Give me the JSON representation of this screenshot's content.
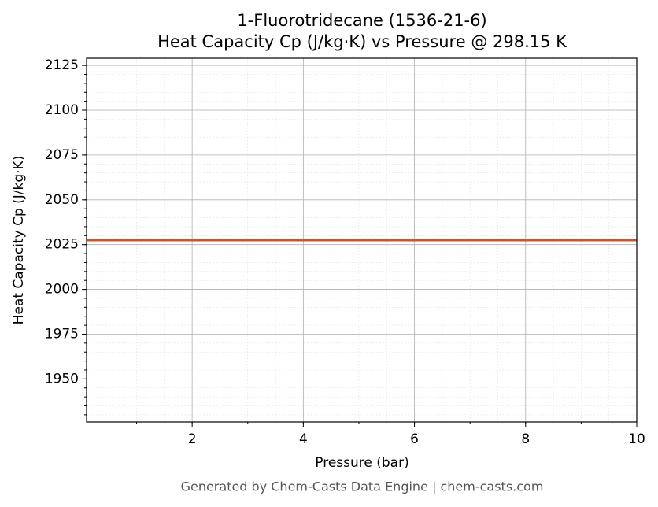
{
  "chart_data": {
    "type": "line",
    "title": "1-Fluorotridecane (1536-21-6)",
    "subtitle": "Heat Capacity Cp (J/kg·K) vs Pressure @ 298.15 K",
    "x_label": "Pressure (bar)",
    "y_label": "Heat Capacity Cp (J/kg·K)",
    "x": [
      0.1,
      10
    ],
    "series": [
      {
        "name": "Cp",
        "color": "#c8562a",
        "values": [
          2027.5,
          2027.5
        ]
      }
    ],
    "xlim": [
      0.1,
      10
    ],
    "xticks": [
      2,
      4,
      6,
      8,
      10
    ],
    "ylim": [
      1926,
      2129
    ],
    "yticks": [
      1950,
      1975,
      2000,
      2025,
      2050,
      2075,
      2100,
      2125
    ],
    "grid": true
  },
  "footer": "Generated by Chem-Casts Data Engine | chem-casts.com"
}
